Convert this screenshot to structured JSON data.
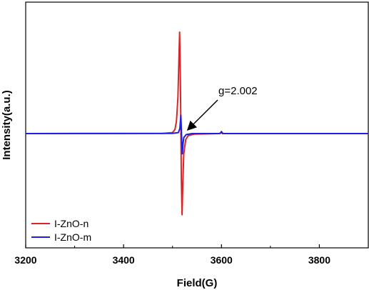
{
  "chart_data": {
    "type": "line",
    "title": "",
    "xlabel": "Field(G)",
    "ylabel": "Intensity(a.u.)",
    "xlim": [
      3200,
      3900
    ],
    "ylim": [
      -1.0,
      1.15
    ],
    "x_ticks": [
      3200,
      3400,
      3600,
      3800
    ],
    "x_tick_labels": [
      "3200",
      "3400",
      "3600",
      "3800"
    ],
    "y_ticks_labeled": false,
    "grid": false,
    "legend_position": "bottom-left",
    "annotation": {
      "text": "g=2.002",
      "arrow_target": [
        3522,
        0.0
      ]
    },
    "series": [
      {
        "name": "I-ZnO-n",
        "color": "#d62728",
        "points": [
          [
            3200,
            0.0
          ],
          [
            3480,
            0.002
          ],
          [
            3500,
            0.01
          ],
          [
            3505,
            0.04
          ],
          [
            3508,
            0.12
          ],
          [
            3511,
            0.35
          ],
          [
            3513,
            0.72
          ],
          [
            3514.5,
            1.0
          ],
          [
            3516,
            0.55
          ],
          [
            3517,
            0.1
          ],
          [
            3518,
            -0.45
          ],
          [
            3519.5,
            -0.8
          ],
          [
            3521,
            -0.5
          ],
          [
            3523,
            -0.2
          ],
          [
            3527,
            -0.06
          ],
          [
            3532,
            -0.02
          ],
          [
            3545,
            -0.005
          ],
          [
            3596,
            0.0
          ],
          [
            3599,
            0.01
          ],
          [
            3602,
            0.0
          ],
          [
            3900,
            0.0
          ]
        ]
      },
      {
        "name": "I-ZnO-m",
        "color": "#1f1fe0",
        "points": [
          [
            3200,
            0.0
          ],
          [
            3500,
            0.002
          ],
          [
            3512,
            0.01
          ],
          [
            3515,
            0.05
          ],
          [
            3517,
            0.18
          ],
          [
            3518,
            0.05
          ],
          [
            3519,
            -0.1
          ],
          [
            3520,
            -0.2
          ],
          [
            3521.5,
            -0.1
          ],
          [
            3523,
            -0.04
          ],
          [
            3528,
            -0.01
          ],
          [
            3540,
            0.0
          ],
          [
            3597,
            0.0
          ],
          [
            3600,
            0.02
          ],
          [
            3603,
            0.0
          ],
          [
            3900,
            0.0
          ]
        ]
      }
    ]
  }
}
